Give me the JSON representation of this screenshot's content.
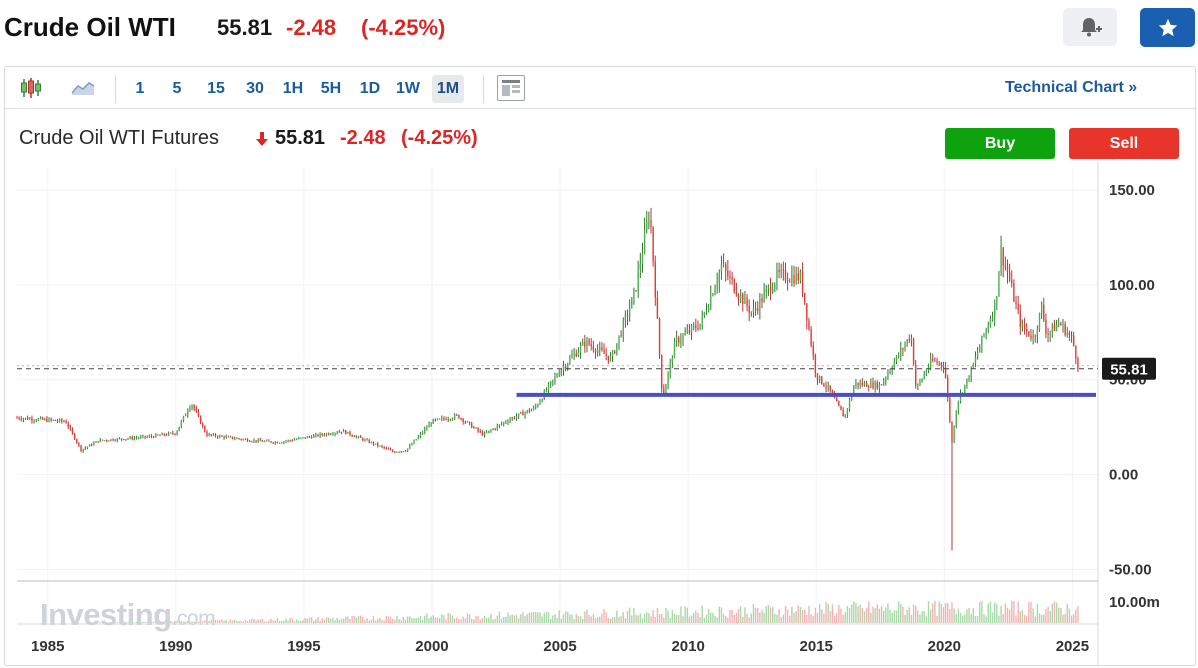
{
  "header": {
    "title": "Crude Oil WTI",
    "price": "55.81",
    "change": "-2.48",
    "change_pct": "(-4.25%)"
  },
  "toolbar": {
    "intervals": [
      "1",
      "5",
      "15",
      "30",
      "1H",
      "5H",
      "1D",
      "1W",
      "1M"
    ],
    "active_interval": "1M",
    "technical_chart_link": "Technical Chart »"
  },
  "legend": {
    "name": "Crude Oil WTI Futures",
    "price": "55.81",
    "change": "-2.48",
    "change_pct": "(-4.25%)",
    "buy_label": "Buy",
    "sell_label": "Sell"
  },
  "watermark": {
    "brand": "Investing",
    "suffix": ".com"
  },
  "colors": {
    "up": "#26a69a",
    "down": "#ef5350",
    "accent": "#1c5c9e",
    "support_line": "#4a4fc4",
    "price_tag": "#1a1a1a"
  },
  "chart_data": {
    "type": "candlestick",
    "interval": "1M",
    "x_ticks": [
      "1985",
      "1990",
      "1995",
      "2000",
      "2005",
      "2010",
      "2015",
      "2020",
      "2025"
    ],
    "y_ticks": [
      "150.00",
      "100.00",
      "50.00",
      "0.00",
      "-50.00"
    ],
    "volume_tick": "10.00m",
    "ylim": [
      -55,
      160
    ],
    "xlim": [
      1983.8,
      2026.0
    ],
    "last_price": 55.81,
    "last_price_label": "55.81",
    "support_level": 42,
    "price_path": [
      [
        1983.8,
        30
      ],
      [
        1985.7,
        28
      ],
      [
        1986.3,
        13
      ],
      [
        1987.0,
        18
      ],
      [
        1989.0,
        20
      ],
      [
        1990.0,
        22
      ],
      [
        1990.6,
        38
      ],
      [
        1991.2,
        21
      ],
      [
        1993.0,
        18
      ],
      [
        1994.0,
        17
      ],
      [
        1996.5,
        23
      ],
      [
        1998.5,
        12
      ],
      [
        1999.0,
        13
      ],
      [
        2000.0,
        28
      ],
      [
        2001.0,
        31
      ],
      [
        2002.0,
        21
      ],
      [
        2003.0,
        29
      ],
      [
        2004.0,
        35
      ],
      [
        2005.0,
        55
      ],
      [
        2006.0,
        70
      ],
      [
        2007.0,
        61
      ],
      [
        2007.9,
        95
      ],
      [
        2008.5,
        140
      ],
      [
        2009.0,
        40
      ],
      [
        2009.5,
        70
      ],
      [
        2010.5,
        80
      ],
      [
        2011.3,
        110
      ],
      [
        2012.0,
        95
      ],
      [
        2012.5,
        85
      ],
      [
        2013.5,
        105
      ],
      [
        2014.4,
        104
      ],
      [
        2015.0,
        52
      ],
      [
        2015.5,
        45
      ],
      [
        2016.1,
        30
      ],
      [
        2016.5,
        48
      ],
      [
        2017.5,
        47
      ],
      [
        2018.7,
        74
      ],
      [
        2018.9,
        45
      ],
      [
        2019.5,
        60
      ],
      [
        2020.0,
        58
      ],
      [
        2020.3,
        17
      ],
      [
        2020.5,
        38
      ],
      [
        2021.0,
        53
      ],
      [
        2021.5,
        72
      ],
      [
        2022.0,
        90
      ],
      [
        2022.2,
        118
      ],
      [
        2022.5,
        105
      ],
      [
        2023.0,
        78
      ],
      [
        2023.5,
        72
      ],
      [
        2023.8,
        88
      ],
      [
        2024.0,
        74
      ],
      [
        2024.5,
        80
      ],
      [
        2025.0,
        71
      ],
      [
        2025.25,
        55.81
      ]
    ]
  }
}
